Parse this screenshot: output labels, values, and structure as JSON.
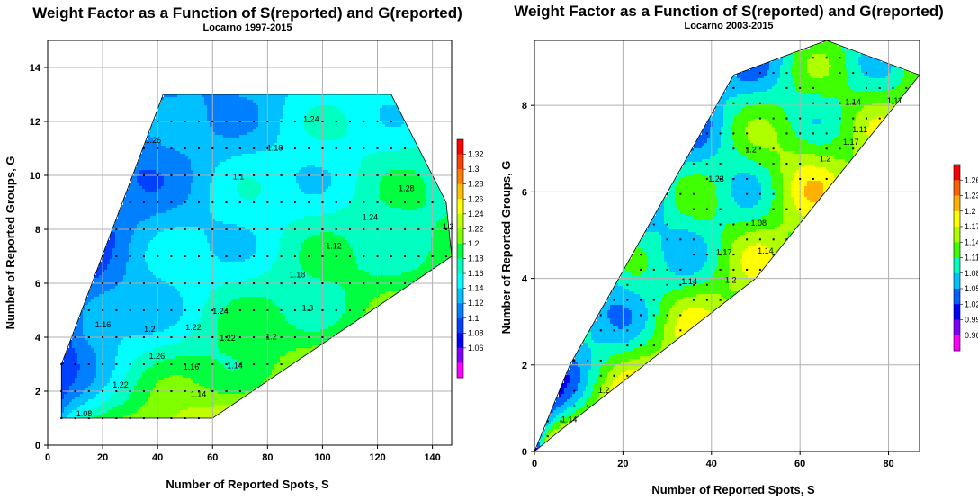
{
  "chart_data": [
    {
      "type": "heatmap",
      "title": "Weight Factor as a Function of S(reported) and G(reported)",
      "subtitle": "Locarno 1997-2015",
      "xlabel": "Number of Reported Spots, S",
      "ylabel": "Number of Reported Groups, G",
      "xlim": [
        0,
        147
      ],
      "ylim": [
        0,
        15
      ],
      "xticks": [
        "0",
        "20",
        "40",
        "60",
        "80",
        "100",
        "120",
        "140"
      ],
      "yticks": [
        "0",
        "2",
        "4",
        "6",
        "8",
        "10",
        "12",
        "14"
      ],
      "grid": true,
      "colorbar": {
        "levels": [
          "1.32",
          "1.3",
          "1.28",
          "1.26",
          "1.24",
          "1.22",
          "1.2",
          "1.18",
          "1.16",
          "1.14",
          "1.12",
          "1.1",
          "1.08",
          "1.06"
        ],
        "colors": [
          "#ff0000",
          "#ff4000",
          "#ff8000",
          "#ffc000",
          "#ffff00",
          "#c0ff00",
          "#80ff00",
          "#00ff40",
          "#00ffc0",
          "#00ffff",
          "#00c0ff",
          "#0080ff",
          "#0040ff",
          "#0000ff",
          "#8000ff",
          "#ff00ff"
        ]
      },
      "contour_labels": [
        "1.16",
        "1.18",
        "1.14",
        "1.2",
        "1.1",
        "1.08",
        "1.12",
        "1.14",
        "1.16",
        "1.18",
        "1.22",
        "1.24",
        "1.2",
        "1.22",
        "1.24",
        "1.26",
        "1.28",
        "1.3",
        "1.26",
        "1.24",
        "1.22",
        "1.2"
      ],
      "domain": [
        [
          5,
          1
        ],
        [
          60,
          1
        ],
        [
          147,
          7
        ],
        [
          145,
          9
        ],
        [
          125,
          13
        ],
        [
          42,
          13
        ],
        [
          5,
          3
        ]
      ]
    },
    {
      "type": "heatmap",
      "title": "Weight Factor as a Function of S(reported) and G(reported)",
      "subtitle": "Locarno 2003-2015",
      "xlabel": "Number of Reported Spots, S",
      "ylabel": "Number of Reported Groups, G",
      "xlim": [
        0,
        87
      ],
      "ylim": [
        0,
        9.5
      ],
      "xticks": [
        "0",
        "20",
        "40",
        "60",
        "80"
      ],
      "yticks": [
        "0",
        "2",
        "4",
        "6",
        "8"
      ],
      "grid": true,
      "colorbar": {
        "levels": [
          "1.26",
          "1.23",
          "1.2",
          "1.17",
          "1.14",
          "1.11",
          "1.08",
          "1.05",
          "1.02",
          "0.99",
          "0.96"
        ],
        "colors": [
          "#ff0000",
          "#ff6000",
          "#ffb000",
          "#ffff00",
          "#b0ff00",
          "#40ff00",
          "#00ffc0",
          "#00c0ff",
          "#0060ff",
          "#0000ff",
          "#8000ff",
          "#ff00ff"
        ]
      },
      "contour_labels": [
        "1.17",
        "1.2",
        "1.2",
        "1.14",
        "1.23",
        "1.14",
        "1.11",
        "1.14",
        "1.17",
        "1.2",
        "1.2",
        "1.11",
        "1.14",
        "1.08"
      ],
      "domain": [
        [
          0,
          0
        ],
        [
          6,
          0.5
        ],
        [
          50,
          4
        ],
        [
          87,
          8.7
        ],
        [
          66,
          9.5
        ],
        [
          45,
          8.7
        ],
        [
          8,
          2
        ],
        [
          0,
          0
        ]
      ]
    }
  ]
}
